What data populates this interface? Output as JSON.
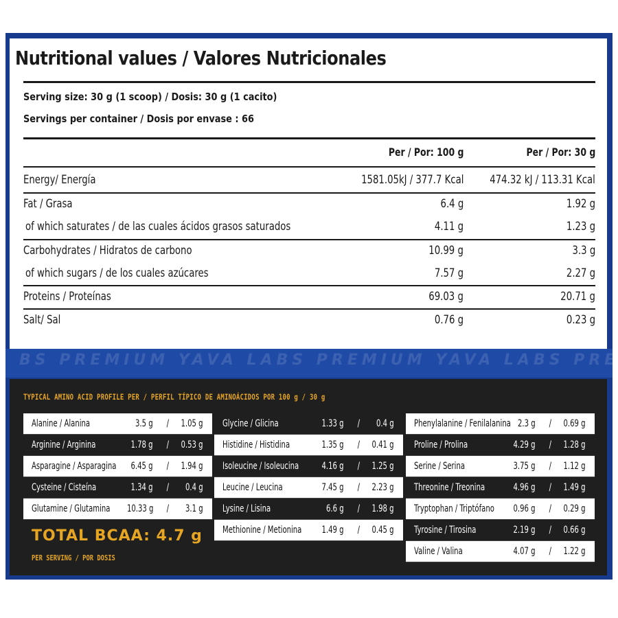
{
  "nutrition": {
    "title": "Nutritional values / Valores Nutricionales",
    "serving_size": "Serving size: 30 g (1 scoop) / Dosis: 30 g (1 cacito)",
    "servings_per_container": "Servings per container / Dosis por envase : 66",
    "col_100g": "Per / Por: 100 g",
    "col_30g": "Per / Por: 30 g",
    "rows": [
      {
        "label": "Energy/ Energía",
        "per100": "1581.05kJ / 377.7 Kcal",
        "per30": "474.32 kJ / 113.31 Kcal"
      },
      {
        "label": "Fat / Grasa",
        "per100": "6.4 g",
        "per30": "1.92 g"
      },
      {
        "label": " of which saturates / de las cuales ácidos grasos saturados",
        "per100": "4.11 g",
        "per30": "1.23 g"
      },
      {
        "label": "Carbohydrates / Hidratos de carbono",
        "per100": "10.99 g",
        "per30": "3.3 g"
      },
      {
        "label": " of which sugars / de los cuales azúcares",
        "per100": "7.57 g",
        "per30": "2.27 g"
      },
      {
        "label": "Proteins / Proteínas",
        "per100": "69.03 g",
        "per30": "20.71 g"
      },
      {
        "label": "Salt/ Sal",
        "per100": "0.76 g",
        "per30": "0.23 g"
      }
    ]
  },
  "band_text": "BS PREMIUM  YAVA LABS PREMIUM  YAVA LABS PREMIUM  YAVA LABS PREMIUM",
  "amino": {
    "title": "TYPICAL AMINO ACID PROFILE PER / PERFIL TÍPICO DE AMINOÁCIDOS POR 100 g / 30 g",
    "separator": "/",
    "col1": [
      {
        "name": "Alanine / Alanina",
        "per100": "3.5 g",
        "per30": "1.05 g"
      },
      {
        "name": "Arginine / Arginina",
        "per100": "1.78 g",
        "per30": "0.53 g"
      },
      {
        "name": "Asparagine / Asparagina",
        "per100": "6.45 g",
        "per30": "1.94 g"
      },
      {
        "name": "Cysteine / Cisteína",
        "per100": "1.34 g",
        "per30": "0.4 g"
      },
      {
        "name": "Glutamine / Glutamina",
        "per100": "10.33 g",
        "per30": "3.1 g"
      }
    ],
    "col2": [
      {
        "name": "Glycine / Glicina",
        "per100": "1.33 g",
        "per30": "0.4 g"
      },
      {
        "name": "Histidine / Histidina",
        "per100": "1.35 g",
        "per30": "0.41 g"
      },
      {
        "name": "Isoleucine / Isoleucina",
        "per100": "4.16 g",
        "per30": "1.25 g"
      },
      {
        "name": "Leucine / Leucina",
        "per100": "7.45 g",
        "per30": "2.23 g"
      },
      {
        "name": "Lysine / Lisina",
        "per100": "6.6 g",
        "per30": "1.98 g"
      },
      {
        "name": "Methionine / Metionina",
        "per100": "1.49 g",
        "per30": "0.45 g"
      }
    ],
    "col3": [
      {
        "name": "Phenylalanine / Fenilalanina",
        "per100": "2.3 g",
        "per30": "0.69 g"
      },
      {
        "name": "Proline / Prolina",
        "per100": "4.29 g",
        "per30": "1.28 g"
      },
      {
        "name": "Serine / Serina",
        "per100": "3.75 g",
        "per30": "1.12 g"
      },
      {
        "name": "Threonine / Treonina",
        "per100": "4.96 g",
        "per30": "1.49 g"
      },
      {
        "name": "Tryptophan / Triptófano",
        "per100": "0.96 g",
        "per30": "0.29 g"
      },
      {
        "name": "Tyrosine / Tirosina",
        "per100": "2.19 g",
        "per30": "0.66 g"
      },
      {
        "name": "Valine / Valina",
        "per100": "4.07 g",
        "per30": "1.22 g"
      }
    ],
    "bcaa": "TOTAL BCAA: 4.7 g",
    "bcaa_sub": "PER SERVING / POR DOSIS"
  },
  "colors": {
    "frame_blue": "#183a8c",
    "accent_orange": "#e6a623",
    "dark_panel": "#201f20"
  }
}
